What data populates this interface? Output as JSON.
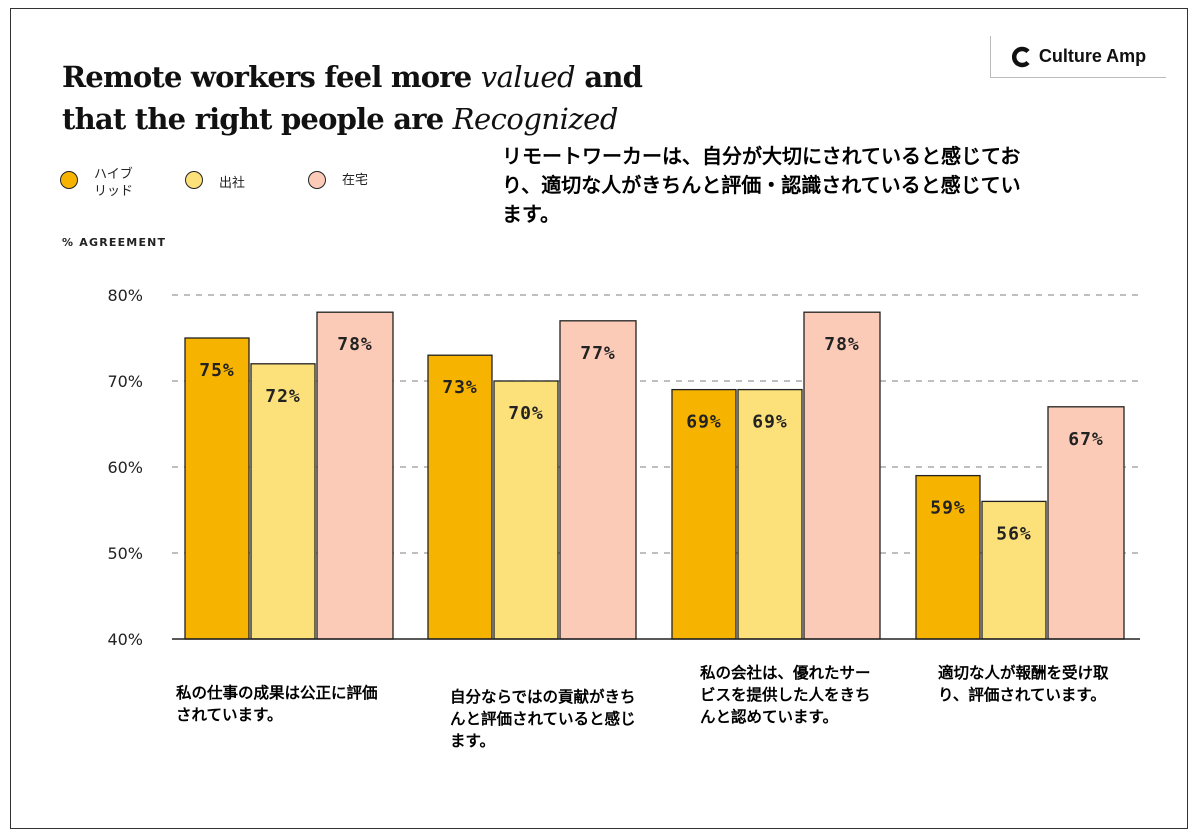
{
  "title_lines": [
    {
      "parts": [
        {
          "text": "Remote workers feel more ",
          "script": false
        },
        {
          "text": "valued",
          "script": true
        },
        {
          "text": " and",
          "script": false
        }
      ]
    },
    {
      "parts": [
        {
          "text": "that the right people are ",
          "script": false
        },
        {
          "text": "Recognized",
          "script": true
        }
      ]
    }
  ],
  "logo": {
    "text": "Culture Amp",
    "icon": "culture-amp-c-icon"
  },
  "caption_jp": "リモートワーカーは、自分が大切にされていると感じており、適切な人がきちんと評価・認識されていると感じています。",
  "legend": [
    {
      "name": "ハイブ\nリッド",
      "color": "#F6B300"
    },
    {
      "name": "出社",
      "color": "#FCE07A"
    },
    {
      "name": "在宅",
      "color": "#FBCBB7"
    }
  ],
  "chart_data": {
    "type": "bar",
    "ylabel": "% AGREEMENT",
    "ylim": [
      40,
      80
    ],
    "yticks": [
      "40%",
      "50%",
      "60%",
      "70%",
      "80%"
    ],
    "grid": true,
    "legend_position": "top-left",
    "categories": [
      "私の仕事の成果は公正に評価されています。",
      "自分ならではの貢献がきちんと評価されていると感じます。",
      "私の会社は、優れたサービスを提供した人をきちんと認めています。",
      "適切な人が報酬を受け取り、評価されています。"
    ],
    "series": [
      {
        "name": "ハイブリッド",
        "color": "#F6B300",
        "values": [
          75,
          73,
          69,
          59
        ],
        "labels": [
          "75%",
          "73%",
          "69%",
          "59%"
        ]
      },
      {
        "name": "出社",
        "color": "#FCE07A",
        "values": [
          72,
          70,
          69,
          56
        ],
        "labels": [
          "72%",
          "70%",
          "69%",
          "56%"
        ]
      },
      {
        "name": "在宅",
        "color": "#FBCBB7",
        "values": [
          78,
          77,
          78,
          67
        ],
        "labels": [
          "78%",
          "77%",
          "78%",
          "67%"
        ]
      }
    ]
  }
}
